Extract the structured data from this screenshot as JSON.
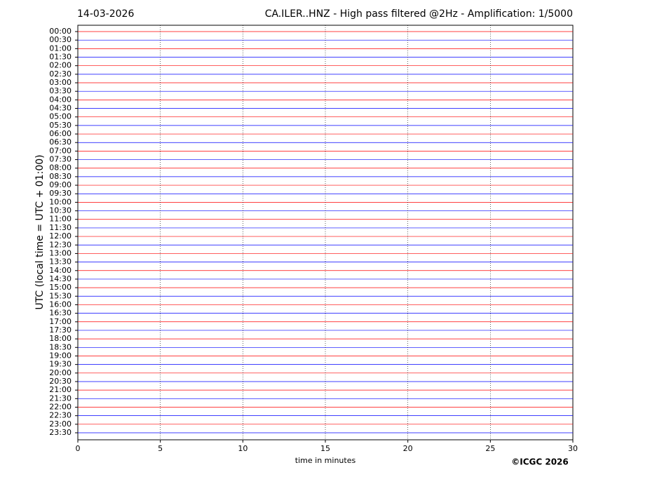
{
  "chart_data": {
    "type": "helicorder",
    "date": "14-03-2026",
    "title": "CA.ILER..HNZ - High pass filtered @2Hz - Amplification: 1/5000",
    "ylabel": "UTC (local time = UTC + 01:00)",
    "xlabel": "time in minutes",
    "copyright": "©ICGC 2026",
    "categories": [
      "00:00",
      "00:30",
      "01:00",
      "01:30",
      "02:00",
      "02:30",
      "03:00",
      "03:30",
      "04:00",
      "04:30",
      "05:00",
      "05:30",
      "06:00",
      "06:30",
      "07:00",
      "07:30",
      "08:00",
      "08:30",
      "09:00",
      "09:30",
      "10:00",
      "10:30",
      "11:00",
      "11:30",
      "12:00",
      "12:30",
      "13:00",
      "13:30",
      "14:00",
      "14:30",
      "15:00",
      "15:30",
      "16:00",
      "16:30",
      "17:00",
      "17:30",
      "18:00",
      "18:30",
      "19:00",
      "19:30",
      "20:00",
      "20:30",
      "21:00",
      "21:30",
      "22:00",
      "22:30",
      "23:00",
      "23:30"
    ],
    "xlim": [
      0,
      30
    ],
    "xticks": [
      0,
      5,
      10,
      15,
      20,
      25,
      30
    ],
    "grid": true,
    "colors": [
      "#ff0000",
      "#0000ff"
    ]
  }
}
